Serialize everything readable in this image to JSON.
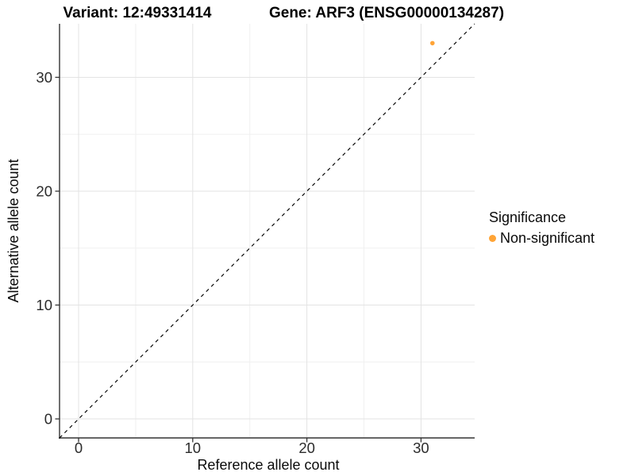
{
  "figure": {
    "titles": {
      "variant": "Variant: 12:49331414",
      "gene": "Gene: ARF3 (ENSG00000134287)"
    }
  },
  "axes": {
    "x_title": "Reference allele count",
    "y_title": "Alternative allele count"
  },
  "legend": {
    "title": "Significance",
    "items": [
      {
        "label": "Non-significant",
        "color": "#FFA436",
        "marker": "circle-icon"
      }
    ]
  },
  "chart_data": {
    "type": "scatter",
    "title": "Variant: 12:49331414    Gene: ARF3 (ENSG00000134287)",
    "xlabel": "Reference allele count",
    "ylabel": "Alternative allele count",
    "xlim": [
      -1.67,
      34.7
    ],
    "ylim": [
      -1.67,
      34.7
    ],
    "x_ticks": [
      0,
      10,
      20,
      30
    ],
    "y_ticks": [
      0,
      10,
      20,
      30
    ],
    "x_minor_gridlines": [
      5,
      15,
      25
    ],
    "y_minor_gridlines": [
      5,
      15,
      25
    ],
    "grid": true,
    "legend_position": "right",
    "series": [
      {
        "name": "Non-significant",
        "color": "#FFA436",
        "points": [
          {
            "x": 31,
            "y": 33
          }
        ]
      }
    ],
    "reference_line": {
      "type": "identity y=x",
      "style": "dashed",
      "color": "#000000",
      "from": [
        -1.67,
        -1.67
      ],
      "to": [
        34.7,
        34.7
      ]
    }
  },
  "style": {
    "background": "#ffffff",
    "grid_major": "#e3e3e3",
    "grid_minor": "#f0f0f0",
    "axis_line": "#333333",
    "tick_text": "#2b2b2b",
    "point_orange": "#FFA436"
  }
}
